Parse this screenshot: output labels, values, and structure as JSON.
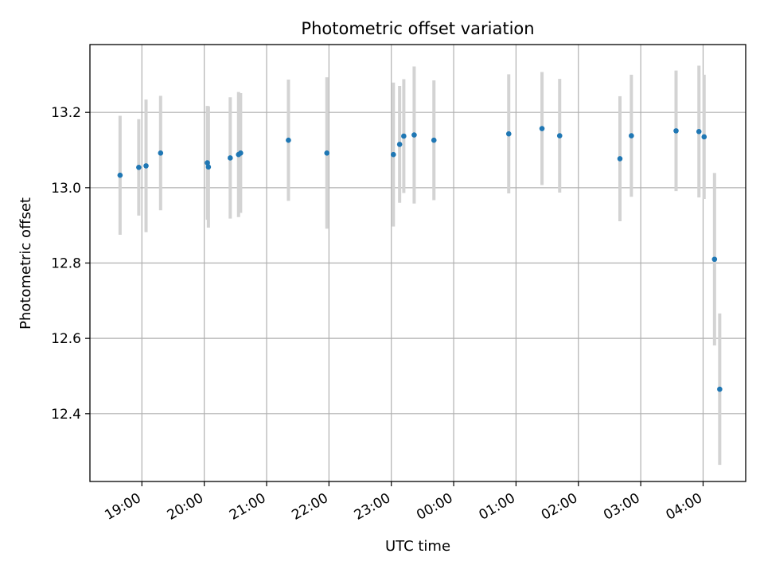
{
  "chart_data": {
    "type": "scatter",
    "title": "Photometric offset variation",
    "xlabel": "UTC time",
    "ylabel": "Photometric offset",
    "x_axis_kind": "time",
    "x_ticks": [
      "19:00",
      "20:00",
      "21:00",
      "22:00",
      "23:00",
      "00:00",
      "01:00",
      "02:00",
      "03:00",
      "04:00"
    ],
    "y_ticks": [
      "12.4",
      "12.6",
      "12.8",
      "13.0",
      "13.2"
    ],
    "xlim": [
      "18:10",
      "04:41"
    ],
    "ylim": [
      12.22,
      13.38
    ],
    "grid": true,
    "colors": {
      "points": "#1f77b4",
      "errorbars": "#d3d3d3",
      "grid": "#b0b0b0"
    },
    "points": [
      {
        "x": "18:39",
        "y": 13.033,
        "err": 0.158
      },
      {
        "x": "18:57",
        "y": 13.054,
        "err": 0.128
      },
      {
        "x": "19:04",
        "y": 13.058,
        "err": 0.176
      },
      {
        "x": "19:18",
        "y": 13.092,
        "err": 0.152
      },
      {
        "x": "20:03",
        "y": 13.066,
        "err": 0.151
      },
      {
        "x": "20:04",
        "y": 13.055,
        "err": 0.161
      },
      {
        "x": "20:25",
        "y": 13.079,
        "err": 0.161
      },
      {
        "x": "20:33",
        "y": 13.088,
        "err": 0.166
      },
      {
        "x": "20:35",
        "y": 13.092,
        "err": 0.159
      },
      {
        "x": "21:21",
        "y": 13.126,
        "err": 0.161
      },
      {
        "x": "21:58",
        "y": 13.092,
        "err": 0.201
      },
      {
        "x": "23:02",
        "y": 13.088,
        "err": 0.191
      },
      {
        "x": "23:08",
        "y": 13.115,
        "err": 0.155
      },
      {
        "x": "23:12",
        "y": 13.137,
        "err": 0.151
      },
      {
        "x": "23:22",
        "y": 13.14,
        "err": 0.182
      },
      {
        "x": "23:41",
        "y": 13.126,
        "err": 0.159
      },
      {
        "x": "00:53",
        "y": 13.143,
        "err": 0.158
      },
      {
        "x": "01:25",
        "y": 13.157,
        "err": 0.15
      },
      {
        "x": "01:42",
        "y": 13.138,
        "err": 0.151
      },
      {
        "x": "02:40",
        "y": 13.077,
        "err": 0.166
      },
      {
        "x": "02:51",
        "y": 13.138,
        "err": 0.162
      },
      {
        "x": "03:34",
        "y": 13.151,
        "err": 0.16
      },
      {
        "x": "03:56",
        "y": 13.149,
        "err": 0.175
      },
      {
        "x": "04:01",
        "y": 13.135,
        "err": 0.165
      },
      {
        "x": "04:11",
        "y": 12.81,
        "err": 0.229
      },
      {
        "x": "04:16",
        "y": 12.465,
        "err": 0.201
      }
    ]
  }
}
